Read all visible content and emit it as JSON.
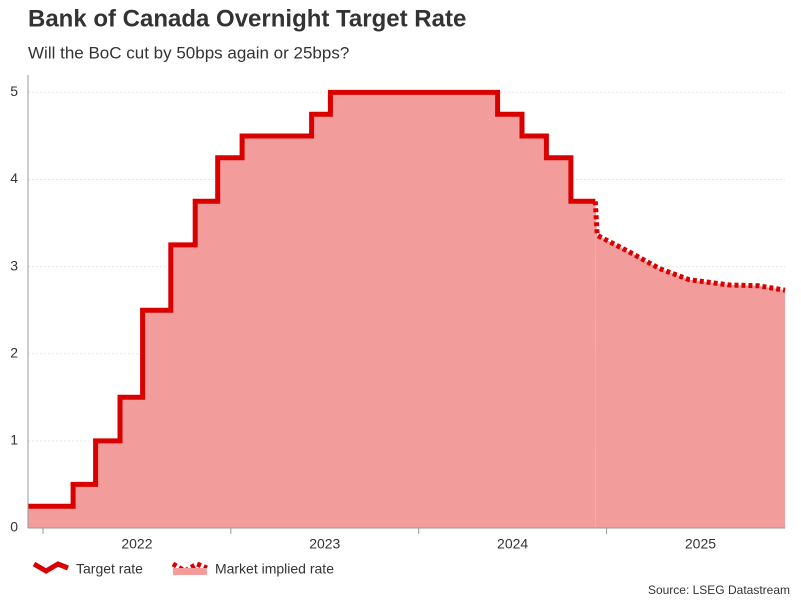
{
  "chart_data": {
    "type": "line",
    "title": "Bank of Canada Overnight Target Rate",
    "subtitle": "Will the BoC cut by 50bps again or 25bps?",
    "source": "Source: LSEG Datastream",
    "xlim": [
      2021.92,
      2025.95
    ],
    "xticks": [
      {
        "value": 2022.5,
        "label": "2022"
      },
      {
        "value": 2023.5,
        "label": "2023"
      },
      {
        "value": 2024.5,
        "label": "2024"
      },
      {
        "value": 2025.5,
        "label": "2025"
      }
    ],
    "ylim": [
      0,
      5.2
    ],
    "yticks": [
      0,
      1,
      2,
      3,
      4,
      5
    ],
    "grid": true,
    "legend": "bottom-left",
    "fill_color": "#f29c9b",
    "series": [
      {
        "name": "Target rate",
        "color": "#d90000",
        "style": "solid",
        "step": true,
        "x": [
          2021.92,
          2022.16,
          2022.28,
          2022.41,
          2022.53,
          2022.68,
          2022.81,
          2022.93,
          2023.06,
          2023.43,
          2023.53,
          2024.42,
          2024.55,
          2024.68,
          2024.81,
          2024.94
        ],
        "values": [
          0.25,
          0.5,
          1,
          1.5,
          2.5,
          3.25,
          3.75,
          4.25,
          4.5,
          4.75,
          5,
          4.75,
          4.5,
          4.25,
          3.75,
          3.75
        ]
      },
      {
        "name": "Market implied rate",
        "color": "#d90000",
        "style": "dotted",
        "step": false,
        "x": [
          2024.94,
          2024.95,
          2025.12,
          2025.28,
          2025.44,
          2025.65,
          2025.81,
          2025.95
        ],
        "values": [
          3.75,
          3.36,
          3.17,
          2.98,
          2.85,
          2.79,
          2.78,
          2.73
        ]
      }
    ]
  }
}
